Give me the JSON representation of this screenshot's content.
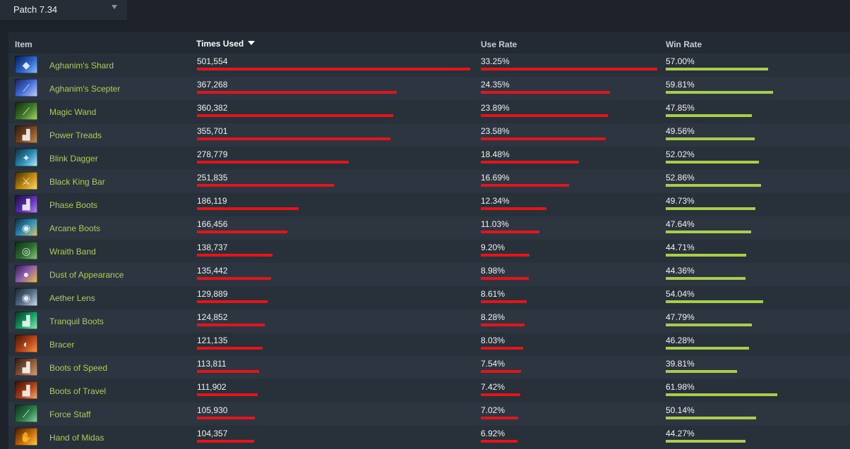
{
  "patch": {
    "label": "Patch 7.34"
  },
  "columns": {
    "item": "Item",
    "times_used": "Times Used",
    "use_rate": "Use Rate",
    "win_rate": "Win Rate"
  },
  "colors": {
    "accent_item_name": "#a9cf54",
    "bar_red": "#e0161d",
    "bar_green": "#a8cd4e"
  },
  "rows": [
    {
      "icon": "aghanims-shard-icon",
      "name": "Aghanim's Shard",
      "times_used": "501,554",
      "use_rate": "33.25%",
      "win_rate": "57.00%"
    },
    {
      "icon": "aghanims-scepter-icon",
      "name": "Aghanim's Scepter",
      "times_used": "367,268",
      "use_rate": "24.35%",
      "win_rate": "59.81%"
    },
    {
      "icon": "magic-wand-icon",
      "name": "Magic Wand",
      "times_used": "360,382",
      "use_rate": "23.89%",
      "win_rate": "47.85%"
    },
    {
      "icon": "power-treads-icon",
      "name": "Power Treads",
      "times_used": "355,701",
      "use_rate": "23.58%",
      "win_rate": "49.56%"
    },
    {
      "icon": "blink-dagger-icon",
      "name": "Blink Dagger",
      "times_used": "278,779",
      "use_rate": "18.48%",
      "win_rate": "52.02%"
    },
    {
      "icon": "black-king-bar-icon",
      "name": "Black King Bar",
      "times_used": "251,835",
      "use_rate": "16.69%",
      "win_rate": "52.86%"
    },
    {
      "icon": "phase-boots-icon",
      "name": "Phase Boots",
      "times_used": "186,119",
      "use_rate": "12.34%",
      "win_rate": "49.73%"
    },
    {
      "icon": "arcane-boots-icon",
      "name": "Arcane Boots",
      "times_used": "166,456",
      "use_rate": "11.03%",
      "win_rate": "47.64%"
    },
    {
      "icon": "wraith-band-icon",
      "name": "Wraith Band",
      "times_used": "138,737",
      "use_rate": "9.20%",
      "win_rate": "44.71%"
    },
    {
      "icon": "dust-of-appearance-icon",
      "name": "Dust of Appearance",
      "times_used": "135,442",
      "use_rate": "8.98%",
      "win_rate": "44.36%"
    },
    {
      "icon": "aether-lens-icon",
      "name": "Aether Lens",
      "times_used": "129,889",
      "use_rate": "8.61%",
      "win_rate": "54.04%"
    },
    {
      "icon": "tranquil-boots-icon",
      "name": "Tranquil Boots",
      "times_used": "124,852",
      "use_rate": "8.28%",
      "win_rate": "47.79%"
    },
    {
      "icon": "bracer-icon",
      "name": "Bracer",
      "times_used": "121,135",
      "use_rate": "8.03%",
      "win_rate": "46.28%"
    },
    {
      "icon": "boots-of-speed-icon",
      "name": "Boots of Speed",
      "times_used": "113,811",
      "use_rate": "7.54%",
      "win_rate": "39.81%"
    },
    {
      "icon": "boots-of-travel-icon",
      "name": "Boots of Travel",
      "times_used": "111,902",
      "use_rate": "7.42%",
      "win_rate": "61.98%"
    },
    {
      "icon": "force-staff-icon",
      "name": "Force Staff",
      "times_used": "105,930",
      "use_rate": "7.02%",
      "win_rate": "50.14%"
    },
    {
      "icon": "hand-of-midas-icon",
      "name": "Hand of Midas",
      "times_used": "104,357",
      "use_rate": "6.92%",
      "win_rate": "44.27%"
    }
  ]
}
